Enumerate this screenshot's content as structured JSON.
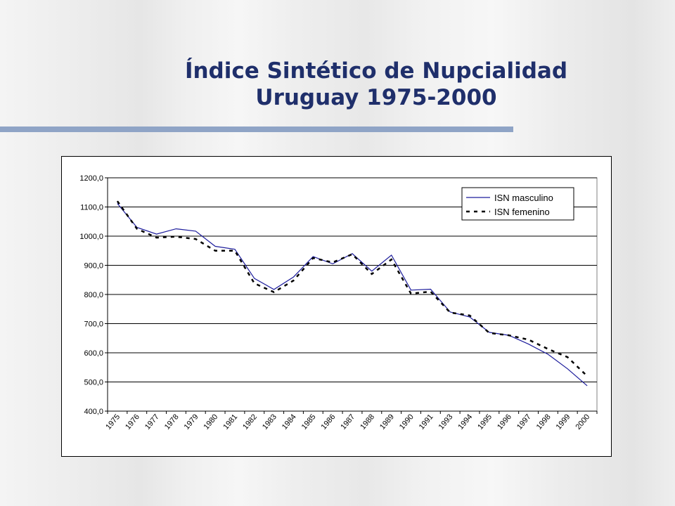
{
  "slide": {
    "title_line1": "Índice Sintético de Nupcialidad",
    "title_line2": "Uruguay 1975-2000",
    "rule_color": "#8fa4c6",
    "title_color": "#1f2f6b"
  },
  "chart_data": {
    "type": "line",
    "title": "",
    "xlabel": "",
    "ylabel": "",
    "categories": [
      "1975",
      "1976",
      "1977",
      "1978",
      "1979",
      "1980",
      "1981",
      "1982",
      "1983",
      "1984",
      "1985",
      "1986",
      "1987",
      "1988",
      "1989",
      "1990",
      "1991",
      "1993",
      "1994",
      "1995",
      "1996",
      "1997",
      "1998",
      "1999",
      "2000"
    ],
    "ylim": [
      400,
      1200
    ],
    "yticks": [
      "400,0",
      "500,0",
      "600,0",
      "700,0",
      "800,0",
      "900,0",
      "1000,0",
      "1100,0",
      "1200,0"
    ],
    "grid": true,
    "legend_position": "top-right",
    "series": [
      {
        "name": "ISN masculino",
        "color": "#1c1c9c",
        "style": "solid",
        "values": [
          1112,
          1030,
          1007,
          1025,
          1017,
          965,
          955,
          855,
          817,
          860,
          930,
          905,
          940,
          880,
          935,
          815,
          818,
          740,
          723,
          670,
          660,
          630,
          595,
          545,
          487
        ]
      },
      {
        "name": "ISN femenino",
        "color": "#000000",
        "style": "dashed",
        "values": [
          1120,
          1025,
          995,
          998,
          990,
          950,
          950,
          838,
          808,
          848,
          925,
          910,
          938,
          870,
          920,
          803,
          810,
          738,
          728,
          668,
          660,
          645,
          613,
          585,
          520
        ]
      }
    ]
  }
}
